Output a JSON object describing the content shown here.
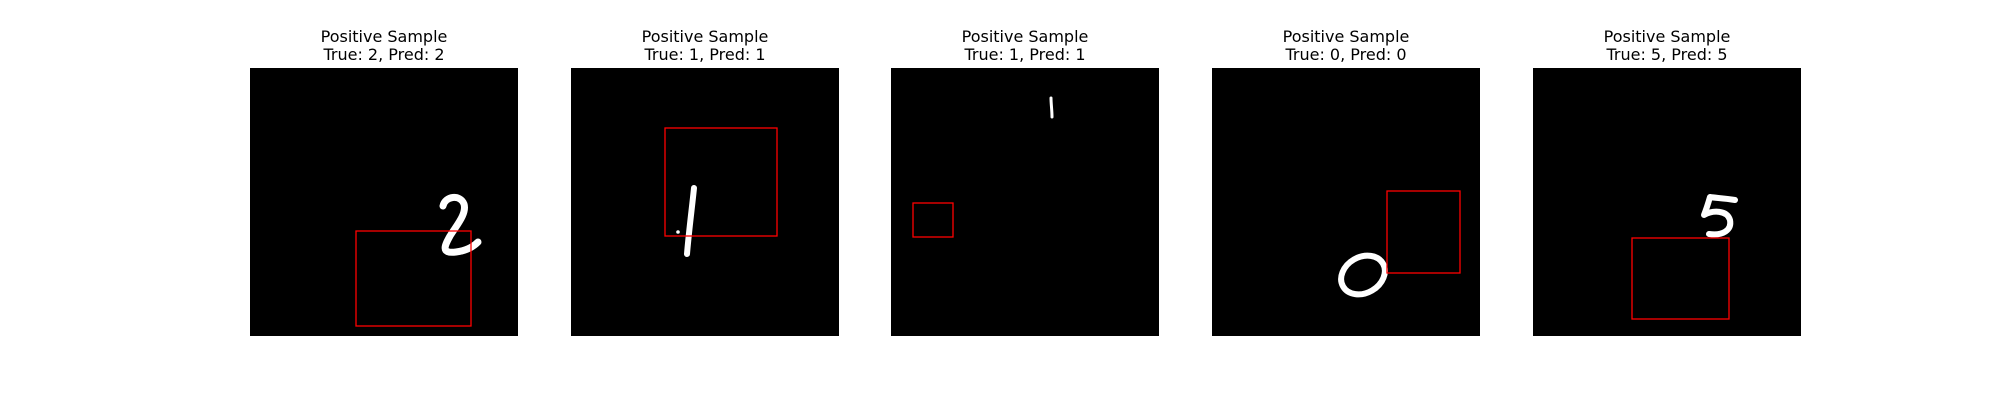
{
  "figure": {
    "panels": [
      {
        "title": "Positive Sample",
        "subtitle": "True: 2, Pred: 2",
        "digit": "2"
      },
      {
        "title": "Positive Sample",
        "subtitle": "True: 1, Pred: 1",
        "digit": "1"
      },
      {
        "title": "Positive Sample",
        "subtitle": "True: 1, Pred: 1",
        "digit": "1"
      },
      {
        "title": "Positive Sample",
        "subtitle": "True: 0, Pred: 0",
        "digit": "0"
      },
      {
        "title": "Positive Sample",
        "subtitle": "True: 5, Pred: 5",
        "digit": "5"
      }
    ]
  },
  "colors": {
    "image_background": "#000000",
    "digit_stroke": "#ffffff",
    "box_stroke": "#ff0000"
  }
}
